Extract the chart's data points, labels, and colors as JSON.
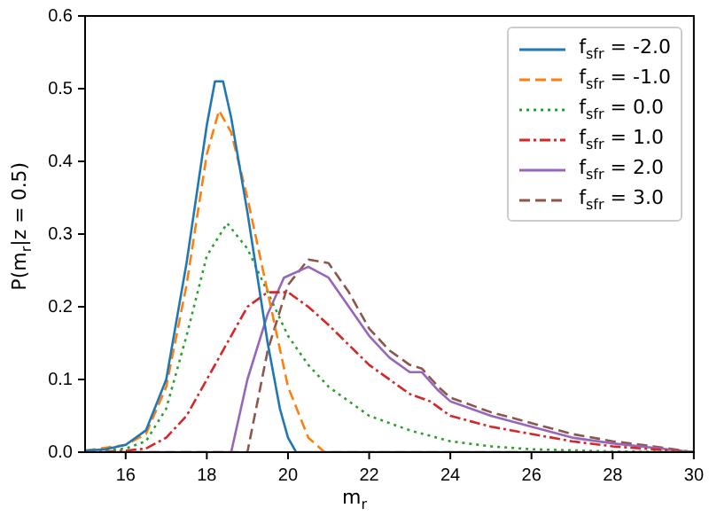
{
  "chart_data": {
    "type": "line",
    "xlabel": "m$_{r}$",
    "ylabel": "P(m$_{r}$|z = 0.5)",
    "xlim": [
      15,
      30
    ],
    "xticks": [
      16,
      18,
      20,
      22,
      24,
      26,
      28,
      30
    ],
    "ylim": [
      0,
      0.6
    ],
    "yticks": [
      {
        "value": 0,
        "label": "0.0"
      },
      {
        "value": 0.1,
        "label": "0.1"
      },
      {
        "value": 0.2,
        "label": "0.2"
      },
      {
        "value": 0.3,
        "label": "0.3"
      },
      {
        "value": 0.4,
        "label": "0.4"
      },
      {
        "value": 0.5,
        "label": "0.5"
      },
      {
        "value": 0.6,
        "label": "0.6"
      }
    ],
    "legend": "top right",
    "grid": false,
    "marker": "none",
    "series": [
      {
        "name": "f$_{sfr}$ = -2.0",
        "color": "#1f77b4",
        "line_style": "solid",
        "x": [
          15,
          15.5,
          16,
          16.5,
          17,
          17.5,
          18,
          18.2,
          18.4,
          18.6,
          19,
          19.5,
          19.8,
          20,
          20.2,
          30
        ],
        "values": [
          0.002,
          0.004,
          0.01,
          0.03,
          0.1,
          0.26,
          0.45,
          0.51,
          0.51,
          0.46,
          0.33,
          0.15,
          0.06,
          0.02,
          0,
          0
        ]
      },
      {
        "name": "f$_{sfr}$ = -1.0",
        "color": "#ff7f0e",
        "line_style": "dashed",
        "x": [
          15,
          16,
          16.5,
          17,
          17.5,
          18,
          18.3,
          18.6,
          19,
          19.5,
          20,
          20.5,
          20.9,
          30
        ],
        "values": [
          0.002,
          0.01,
          0.025,
          0.09,
          0.23,
          0.41,
          0.47,
          0.44,
          0.35,
          0.22,
          0.09,
          0.02,
          0,
          0
        ]
      },
      {
        "name": "f$_{sfr}$ = 0.0",
        "color": "#2ca02c",
        "line_style": "dotted",
        "x": [
          15,
          16,
          16.5,
          17,
          17.5,
          18,
          18.5,
          19,
          19.5,
          20,
          20.5,
          21,
          22,
          23,
          24,
          25,
          26,
          28,
          30
        ],
        "values": [
          0,
          0.005,
          0.015,
          0.06,
          0.16,
          0.27,
          0.315,
          0.28,
          0.22,
          0.16,
          0.12,
          0.09,
          0.05,
          0.03,
          0.015,
          0.008,
          0.004,
          0.001,
          0
        ]
      },
      {
        "name": "f$_{sfr}$ = 1.0",
        "color": "#d62728",
        "line_style": "dashdot",
        "x": [
          15,
          16,
          16.5,
          17,
          17.5,
          18,
          18.5,
          19,
          19.5,
          20,
          20.5,
          21,
          22,
          23,
          23.5,
          24,
          25,
          26,
          27,
          28,
          29,
          30
        ],
        "values": [
          0,
          0.002,
          0.005,
          0.02,
          0.05,
          0.1,
          0.15,
          0.2,
          0.22,
          0.22,
          0.2,
          0.175,
          0.12,
          0.08,
          0.07,
          0.05,
          0.035,
          0.025,
          0.015,
          0.008,
          0.004,
          0
        ]
      },
      {
        "name": "f$_{sfr}$ = 2.0",
        "color": "#9467bd",
        "line_style": "solid",
        "x": [
          15,
          18.6,
          19,
          19.5,
          19.9,
          20.5,
          21,
          21.5,
          22,
          22.5,
          23,
          23.3,
          23.7,
          24,
          25,
          26,
          27,
          28,
          29,
          30
        ],
        "values": [
          0,
          0,
          0.1,
          0.19,
          0.24,
          0.255,
          0.24,
          0.2,
          0.16,
          0.13,
          0.11,
          0.11,
          0.085,
          0.07,
          0.05,
          0.035,
          0.02,
          0.012,
          0.006,
          0
        ]
      },
      {
        "name": "f$_{sfr}$ = 3.0",
        "color": "#8c564b",
        "line_style": "dashed",
        "x": [
          15,
          19,
          19.5,
          20,
          20.5,
          21,
          21.5,
          22,
          22.5,
          23,
          23.3,
          23.7,
          24,
          25,
          26,
          27,
          28,
          29,
          30
        ],
        "values": [
          0,
          0,
          0.14,
          0.23,
          0.265,
          0.26,
          0.22,
          0.17,
          0.14,
          0.12,
          0.115,
          0.09,
          0.075,
          0.055,
          0.04,
          0.025,
          0.015,
          0.008,
          0
        ]
      }
    ]
  }
}
